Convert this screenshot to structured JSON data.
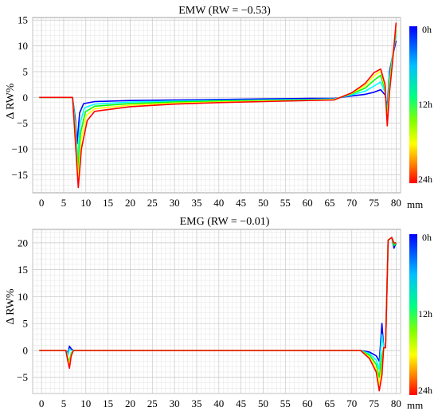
{
  "chart_data": [
    {
      "type": "line",
      "title": "EMW (RW = −0.53)",
      "ylabel": "Δ RW%",
      "xunit": "mm",
      "xlim": [
        -2,
        81
      ],
      "ylim": [
        -18.5,
        15.5
      ],
      "xticks": [
        0,
        5,
        10,
        15,
        20,
        25,
        30,
        35,
        40,
        45,
        50,
        55,
        60,
        65,
        70,
        75,
        80
      ],
      "yticks": [
        -15,
        -10,
        -5,
        0,
        5,
        10,
        15
      ],
      "grid": true,
      "colorbar": {
        "labels": [
          "0h",
          "12h",
          "24h"
        ],
        "range_hours": [
          0,
          24
        ],
        "colors": [
          "#0000ff",
          "#00ffff",
          "#00ff00",
          "#ffff00",
          "#ff0000"
        ]
      },
      "series": [
        {
          "hours": 0,
          "x": [
            -0.5,
            7.0,
            7.6,
            8.0,
            8.6,
            9.5,
            12,
            20,
            30,
            40,
            50,
            60,
            66,
            70,
            73,
            75,
            76.5,
            77.5,
            78.0,
            78.5,
            79.2,
            80.0
          ],
          "y": [
            0,
            0,
            -4,
            -9,
            -3,
            -1.2,
            -0.8,
            -0.6,
            -0.5,
            -0.4,
            -0.3,
            -0.2,
            -0.2,
            0.3,
            0.6,
            1.0,
            1.5,
            0.5,
            -2,
            5.0,
            8.0,
            11.0
          ]
        },
        {
          "hours": 6,
          "x": [
            -0.5,
            7.0,
            7.6,
            8.1,
            8.7,
            9.7,
            12,
            20,
            30,
            40,
            50,
            60,
            66,
            70,
            73,
            75,
            76.5,
            77.5,
            78.0,
            78.5,
            79.2,
            80.0
          ],
          "y": [
            0,
            0,
            -5,
            -12,
            -5,
            -2.0,
            -1.3,
            -0.9,
            -0.7,
            -0.6,
            -0.5,
            -0.4,
            -0.3,
            0.5,
            1.2,
            2.2,
            3.0,
            1.0,
            -3,
            4.0,
            8.0,
            12.0
          ]
        },
        {
          "hours": 12,
          "x": [
            -0.5,
            7.0,
            7.6,
            8.2,
            8.8,
            9.9,
            12,
            20,
            30,
            40,
            50,
            60,
            66,
            70,
            73,
            75,
            76.5,
            77.5,
            78.0,
            78.5,
            79.2,
            80.0
          ],
          "y": [
            0,
            0,
            -6,
            -14,
            -7,
            -2.8,
            -1.7,
            -1.2,
            -0.9,
            -0.7,
            -0.6,
            -0.5,
            -0.4,
            0.7,
            1.8,
            3.3,
            4.3,
            1.5,
            -4,
            3.0,
            8.0,
            13.0
          ]
        },
        {
          "hours": 18,
          "x": [
            -0.5,
            7.0,
            7.6,
            8.25,
            8.9,
            10.1,
            12,
            20,
            30,
            40,
            50,
            60,
            66,
            70,
            73,
            75,
            76.5,
            77.5,
            78.0,
            78.5,
            79.2,
            80.0
          ],
          "y": [
            0,
            0,
            -7,
            -16,
            -8.5,
            -3.5,
            -2.2,
            -1.5,
            -1.1,
            -0.9,
            -0.7,
            -0.6,
            -0.4,
            0.8,
            2.3,
            4.2,
            5.1,
            2.0,
            -5,
            2.0,
            7.5,
            14.0
          ]
        },
        {
          "hours": 24,
          "x": [
            -0.5,
            7.0,
            7.6,
            8.3,
            9.0,
            10.3,
            12,
            20,
            30,
            40,
            50,
            60,
            66,
            70,
            73,
            75,
            76.5,
            77.5,
            78.0,
            78.5,
            79.2,
            80.0
          ],
          "y": [
            0,
            0,
            -8,
            -17.5,
            -10,
            -4.5,
            -2.7,
            -1.8,
            -1.3,
            -1.0,
            -0.8,
            -0.6,
            -0.5,
            0.9,
            2.7,
            4.8,
            5.5,
            2.5,
            -5.5,
            1.0,
            7.0,
            14.5
          ]
        }
      ]
    },
    {
      "type": "line",
      "title": "EMG (RW = −0.01)",
      "ylabel": "Δ RW%",
      "xunit": "mm",
      "xlim": [
        -2,
        81
      ],
      "ylim": [
        -8,
        22.5
      ],
      "xticks": [
        0,
        5,
        10,
        15,
        20,
        25,
        30,
        35,
        40,
        45,
        50,
        55,
        60,
        65,
        70,
        75,
        80
      ],
      "yticks": [
        -5,
        0,
        5,
        10,
        15,
        20
      ],
      "grid": true,
      "colorbar": {
        "labels": [
          "0h",
          "12h",
          "24h"
        ],
        "range_hours": [
          0,
          24
        ],
        "colors": [
          "#0000ff",
          "#00ffff",
          "#00ff00",
          "#ffff00",
          "#ff0000"
        ]
      },
      "series": [
        {
          "hours": 0,
          "x": [
            -0.5,
            5.5,
            6.0,
            6.3,
            6.7,
            7.2,
            20,
            40,
            60,
            72,
            74,
            75.5,
            76.2,
            76.8,
            77.2,
            77.6,
            78.2,
            79.0,
            79.5,
            80.0
          ],
          "y": [
            0,
            0,
            -0.5,
            0.8,
            0.3,
            0,
            0,
            0,
            0,
            0,
            -0.3,
            -1.0,
            -2.0,
            5.0,
            0.5,
            0.5,
            20.5,
            21.0,
            19.0,
            20.0
          ]
        },
        {
          "hours": 6,
          "x": [
            -0.5,
            5.5,
            6.0,
            6.3,
            6.7,
            7.2,
            20,
            40,
            60,
            72,
            74,
            75.5,
            76.2,
            76.8,
            77.2,
            77.6,
            78.2,
            79.0,
            79.5,
            80.0
          ],
          "y": [
            0,
            0,
            -0.8,
            0.2,
            0,
            0,
            0,
            0,
            0,
            0,
            -0.6,
            -1.8,
            -3.5,
            3.0,
            0.5,
            0.5,
            20.5,
            21.0,
            19.5,
            20.0
          ]
        },
        {
          "hours": 12,
          "x": [
            -0.5,
            5.5,
            6.0,
            6.3,
            6.7,
            7.2,
            20,
            40,
            60,
            72,
            74,
            75.5,
            76.2,
            76.8,
            77.2,
            77.6,
            78.2,
            79.0,
            79.5,
            80.0
          ],
          "y": [
            0,
            0,
            -1.5,
            -2.0,
            -0.5,
            0,
            0,
            0,
            0,
            0,
            -0.9,
            -2.6,
            -5.0,
            -1.0,
            0.5,
            0.5,
            20.5,
            21.0,
            19.5,
            20.0
          ]
        },
        {
          "hours": 18,
          "x": [
            -0.5,
            5.5,
            6.0,
            6.3,
            6.7,
            7.2,
            20,
            40,
            60,
            72,
            74,
            75.5,
            76.2,
            76.8,
            77.2,
            77.6,
            78.2,
            79.0,
            79.5,
            80.0
          ],
          "y": [
            0,
            0,
            -1.8,
            -2.6,
            -0.8,
            0,
            0,
            0,
            0,
            0,
            -1.2,
            -3.4,
            -6.4,
            -3.0,
            0.5,
            0.5,
            20.5,
            21.0,
            20.0,
            20.0
          ]
        },
        {
          "hours": 24,
          "x": [
            -0.5,
            5.5,
            6.0,
            6.3,
            6.7,
            7.2,
            20,
            40,
            60,
            72,
            74,
            75.5,
            76.2,
            76.8,
            77.2,
            77.6,
            78.2,
            79.0,
            79.5,
            80.0
          ],
          "y": [
            0,
            0,
            -2.2,
            -3.3,
            -1.0,
            0,
            0,
            0,
            0,
            0,
            -1.5,
            -4.0,
            -7.5,
            -4.5,
            0.5,
            0.5,
            20.5,
            21.0,
            20.0,
            20.0
          ]
        }
      ]
    }
  ]
}
